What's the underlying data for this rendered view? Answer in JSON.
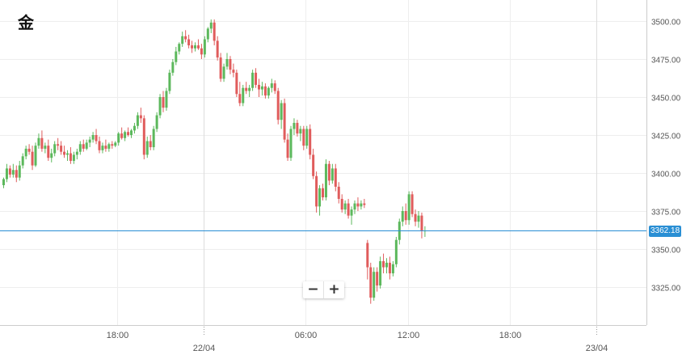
{
  "title": "金",
  "zoom": {
    "out_label": "−",
    "in_label": "+"
  },
  "colors": {
    "up": "#5cb85c",
    "down": "#e05c5c",
    "current_price": "#2a8fd4",
    "grid": "#eeeeee",
    "axis_text": "#555555"
  },
  "current_price": {
    "value": 3362.18,
    "label": "3362.18"
  },
  "chart_data": {
    "type": "candlestick",
    "title": "金",
    "y_ticks": [
      "3500.00",
      "3475.00",
      "3450.00",
      "3425.00",
      "3400.00",
      "3375.00",
      "3350.00",
      "3325.00"
    ],
    "y_tick_values": [
      3500,
      3475,
      3450,
      3425,
      3400,
      3375,
      3350,
      3325
    ],
    "ylim": [
      3300,
      3510
    ],
    "x_ticks": [
      {
        "label": "18:00",
        "bar": 36,
        "day": false
      },
      {
        "label": "22/04",
        "bar": 63,
        "day": true
      },
      {
        "label": "06:00",
        "bar": 95,
        "day": false
      },
      {
        "label": "12:00",
        "bar": 127,
        "day": false
      },
      {
        "label": "18:00",
        "bar": 159,
        "day": false
      },
      {
        "label": "23/04",
        "bar": 186,
        "day": true
      }
    ],
    "grid": true,
    "bar_interval_minutes": 20,
    "ohlc": [
      [
        3392.0,
        3397.0,
        3390.0,
        3396.0
      ],
      [
        3396.0,
        3406.0,
        3394.0,
        3403.0
      ],
      [
        3403.0,
        3405.0,
        3397.0,
        3399.0
      ],
      [
        3399.0,
        3406.0,
        3397.0,
        3402.0
      ],
      [
        3402.0,
        3405.0,
        3394.0,
        3397.0
      ],
      [
        3397.0,
        3408.0,
        3395.0,
        3405.0
      ],
      [
        3405.0,
        3413.0,
        3403.0,
        3411.0
      ],
      [
        3411.0,
        3418.0,
        3409.0,
        3416.0
      ],
      [
        3416.0,
        3419.0,
        3412.0,
        3414.0
      ],
      [
        3414.0,
        3418.0,
        3402.0,
        3405.0
      ],
      [
        3405.0,
        3420.0,
        3404.0,
        3418.0
      ],
      [
        3418.0,
        3426.0,
        3416.0,
        3423.0
      ],
      [
        3423.0,
        3428.0,
        3414.0,
        3416.0
      ],
      [
        3416.0,
        3420.0,
        3413.0,
        3418.0
      ],
      [
        3418.0,
        3422.0,
        3408.0,
        3410.0
      ],
      [
        3410.0,
        3416.0,
        3407.0,
        3413.0
      ],
      [
        3413.0,
        3421.0,
        3411.0,
        3419.0
      ],
      [
        3419.0,
        3423.0,
        3415.0,
        3418.0
      ],
      [
        3418.0,
        3421.0,
        3412.0,
        3414.0
      ],
      [
        3414.0,
        3418.0,
        3410.0,
        3412.0
      ],
      [
        3412.0,
        3415.0,
        3408.0,
        3413.0
      ],
      [
        3413.0,
        3417.0,
        3406.0,
        3408.0
      ],
      [
        3408.0,
        3414.0,
        3406.0,
        3412.0
      ],
      [
        3412.0,
        3416.0,
        3409.0,
        3414.0
      ],
      [
        3414.0,
        3421.0,
        3412.0,
        3419.0
      ],
      [
        3419.0,
        3422.0,
        3414.0,
        3416.0
      ],
      [
        3416.0,
        3422.0,
        3415.0,
        3420.0
      ],
      [
        3420.0,
        3424.0,
        3417.0,
        3422.0
      ],
      [
        3422.0,
        3427.0,
        3420.0,
        3425.0
      ],
      [
        3425.0,
        3429.0,
        3419.0,
        3421.0
      ],
      [
        3421.0,
        3424.0,
        3413.0,
        3415.0
      ],
      [
        3415.0,
        3420.0,
        3413.0,
        3418.0
      ],
      [
        3418.0,
        3422.0,
        3414.0,
        3416.0
      ],
      [
        3416.0,
        3420.0,
        3414.0,
        3419.0
      ],
      [
        3419.0,
        3421.0,
        3416.0,
        3418.0
      ],
      [
        3418.0,
        3421.0,
        3417.0,
        3420.0
      ],
      [
        3420.0,
        3427.0,
        3418.0,
        3426.0
      ],
      [
        3426.0,
        3430.0,
        3422.0,
        3423.0
      ],
      [
        3423.0,
        3428.0,
        3421.0,
        3427.0
      ],
      [
        3427.0,
        3430.0,
        3424.0,
        3425.0
      ],
      [
        3425.0,
        3429.0,
        3423.0,
        3428.0
      ],
      [
        3428.0,
        3433.0,
        3426.0,
        3431.0
      ],
      [
        3431.0,
        3440.0,
        3429.0,
        3438.0
      ],
      [
        3438.0,
        3443.0,
        3433.0,
        3436.0
      ],
      [
        3436.0,
        3438.0,
        3409.0,
        3412.0
      ],
      [
        3412.0,
        3424.0,
        3410.0,
        3421.0
      ],
      [
        3421.0,
        3425.0,
        3415.0,
        3417.0
      ],
      [
        3417.0,
        3431.0,
        3415.0,
        3429.0
      ],
      [
        3429.0,
        3440.0,
        3427.0,
        3438.0
      ],
      [
        3438.0,
        3452.0,
        3436.0,
        3450.0
      ],
      [
        3450.0,
        3454.0,
        3440.0,
        3443.0
      ],
      [
        3443.0,
        3456.0,
        3441.0,
        3454.0
      ],
      [
        3454.0,
        3468.0,
        3452.0,
        3466.0
      ],
      [
        3466.0,
        3475.0,
        3464.0,
        3473.0
      ],
      [
        3473.0,
        3483.0,
        3471.0,
        3480.0
      ],
      [
        3480.0,
        3486.0,
        3478.0,
        3485.0
      ],
      [
        3485.0,
        3493.0,
        3483.0,
        3490.0
      ],
      [
        3490.0,
        3494.0,
        3486.0,
        3488.0
      ],
      [
        3488.0,
        3491.0,
        3482.0,
        3484.0
      ],
      [
        3484.0,
        3487.0,
        3479.0,
        3482.0
      ],
      [
        3482.0,
        3486.0,
        3480.0,
        3484.0
      ],
      [
        3484.0,
        3488.0,
        3481.0,
        3482.0
      ],
      [
        3482.0,
        3485.0,
        3475.0,
        3478.0
      ],
      [
        3478.0,
        3490.0,
        3476.0,
        3488.0
      ],
      [
        3488.0,
        3496.0,
        3486.0,
        3495.0
      ],
      [
        3495.0,
        3501.0,
        3492.0,
        3499.0
      ],
      [
        3499.0,
        3501.0,
        3484.0,
        3487.0
      ],
      [
        3487.0,
        3490.0,
        3474.0,
        3476.0
      ],
      [
        3476.0,
        3479.0,
        3460.0,
        3462.0
      ],
      [
        3462.0,
        3472.0,
        3460.0,
        3470.0
      ],
      [
        3470.0,
        3479.0,
        3468.0,
        3475.0
      ],
      [
        3475.0,
        3477.0,
        3465.0,
        3468.0
      ],
      [
        3468.0,
        3472.0,
        3463.0,
        3466.0
      ],
      [
        3466.0,
        3468.0,
        3450.0,
        3452.0
      ],
      [
        3452.0,
        3460.0,
        3444.0,
        3446.0
      ],
      [
        3446.0,
        3458.0,
        3444.0,
        3456.0
      ],
      [
        3456.0,
        3460.0,
        3452.0,
        3454.0
      ],
      [
        3454.0,
        3458.0,
        3450.0,
        3456.0
      ],
      [
        3456.0,
        3468.0,
        3454.0,
        3466.0
      ],
      [
        3466.0,
        3469.0,
        3456.0,
        3458.0
      ],
      [
        3458.0,
        3462.0,
        3450.0,
        3455.0
      ],
      [
        3455.0,
        3460.0,
        3451.0,
        3457.0
      ],
      [
        3457.0,
        3459.0,
        3449.0,
        3451.0
      ],
      [
        3451.0,
        3457.0,
        3449.0,
        3456.0
      ],
      [
        3456.0,
        3462.0,
        3453.0,
        3459.0
      ],
      [
        3459.0,
        3461.0,
        3452.0,
        3454.0
      ],
      [
        3454.0,
        3456.0,
        3432.0,
        3435.0
      ],
      [
        3435.0,
        3448.0,
        3429.0,
        3446.0
      ],
      [
        3446.0,
        3449.0,
        3420.0,
        3422.0
      ],
      [
        3422.0,
        3426.0,
        3408.0,
        3410.0
      ],
      [
        3410.0,
        3431.0,
        3408.0,
        3429.0
      ],
      [
        3429.0,
        3436.0,
        3425.0,
        3433.0
      ],
      [
        3433.0,
        3435.0,
        3424.0,
        3426.0
      ],
      [
        3426.0,
        3431.0,
        3421.0,
        3429.0
      ],
      [
        3429.0,
        3431.0,
        3415.0,
        3418.0
      ],
      [
        3418.0,
        3431.0,
        3416.0,
        3429.0
      ],
      [
        3429.0,
        3432.0,
        3409.0,
        3412.0
      ],
      [
        3412.0,
        3416.0,
        3396.0,
        3398.0
      ],
      [
        3398.0,
        3401.0,
        3374.0,
        3378.0
      ],
      [
        3378.0,
        3392.0,
        3372.0,
        3390.0
      ],
      [
        3390.0,
        3393.0,
        3382.0,
        3384.0
      ],
      [
        3384.0,
        3409.0,
        3382.0,
        3406.0
      ],
      [
        3406.0,
        3408.0,
        3392.0,
        3395.0
      ],
      [
        3395.0,
        3406.0,
        3393.0,
        3403.0
      ],
      [
        3403.0,
        3406.0,
        3388.0,
        3391.0
      ],
      [
        3391.0,
        3394.0,
        3380.0,
        3383.0
      ],
      [
        3383.0,
        3386.0,
        3374.0,
        3376.0
      ],
      [
        3376.0,
        3382.0,
        3373.0,
        3380.0
      ],
      [
        3380.0,
        3383.0,
        3370.0,
        3372.0
      ],
      [
        3372.0,
        3378.0,
        3366.0,
        3376.0
      ],
      [
        3376.0,
        3382.0,
        3373.0,
        3380.0
      ],
      [
        3380.0,
        3384.0,
        3375.0,
        3378.0
      ],
      [
        3378.0,
        3382.0,
        3376.0,
        3380.0
      ],
      [
        3380.0,
        3383.0,
        3377.0,
        3379.0
      ],
      [
        3354.0,
        3356.0,
        3330.0,
        3338.0
      ],
      [
        3338.0,
        3341.0,
        3314.0,
        3318.0
      ],
      [
        3318.0,
        3338.0,
        3316.0,
        3335.0
      ],
      [
        3335.0,
        3338.0,
        3322.0,
        3326.0
      ],
      [
        3326.0,
        3345.0,
        3324.0,
        3342.0
      ],
      [
        3342.0,
        3347.0,
        3334.0,
        3338.0
      ],
      [
        3338.0,
        3344.0,
        3334.0,
        3341.0
      ],
      [
        3341.0,
        3345.0,
        3330.0,
        3334.0
      ],
      [
        3334.0,
        3342.0,
        3332.0,
        3340.0
      ],
      [
        3340.0,
        3358.0,
        3338.0,
        3356.0
      ],
      [
        3356.0,
        3370.0,
        3353.0,
        3368.0
      ],
      [
        3368.0,
        3378.0,
        3365.0,
        3375.0
      ],
      [
        3375.0,
        3380.0,
        3366.0,
        3369.0
      ],
      [
        3369.0,
        3388.0,
        3366.0,
        3386.0
      ],
      [
        3386.0,
        3388.0,
        3371.0,
        3373.0
      ],
      [
        3373.0,
        3376.0,
        3365.0,
        3368.0
      ],
      [
        3368.0,
        3375.0,
        3364.0,
        3372.0
      ],
      [
        3372.0,
        3374.0,
        3357.0,
        3362.0
      ],
      [
        3362.0,
        3365.0,
        3358.0,
        3362.18
      ]
    ]
  }
}
